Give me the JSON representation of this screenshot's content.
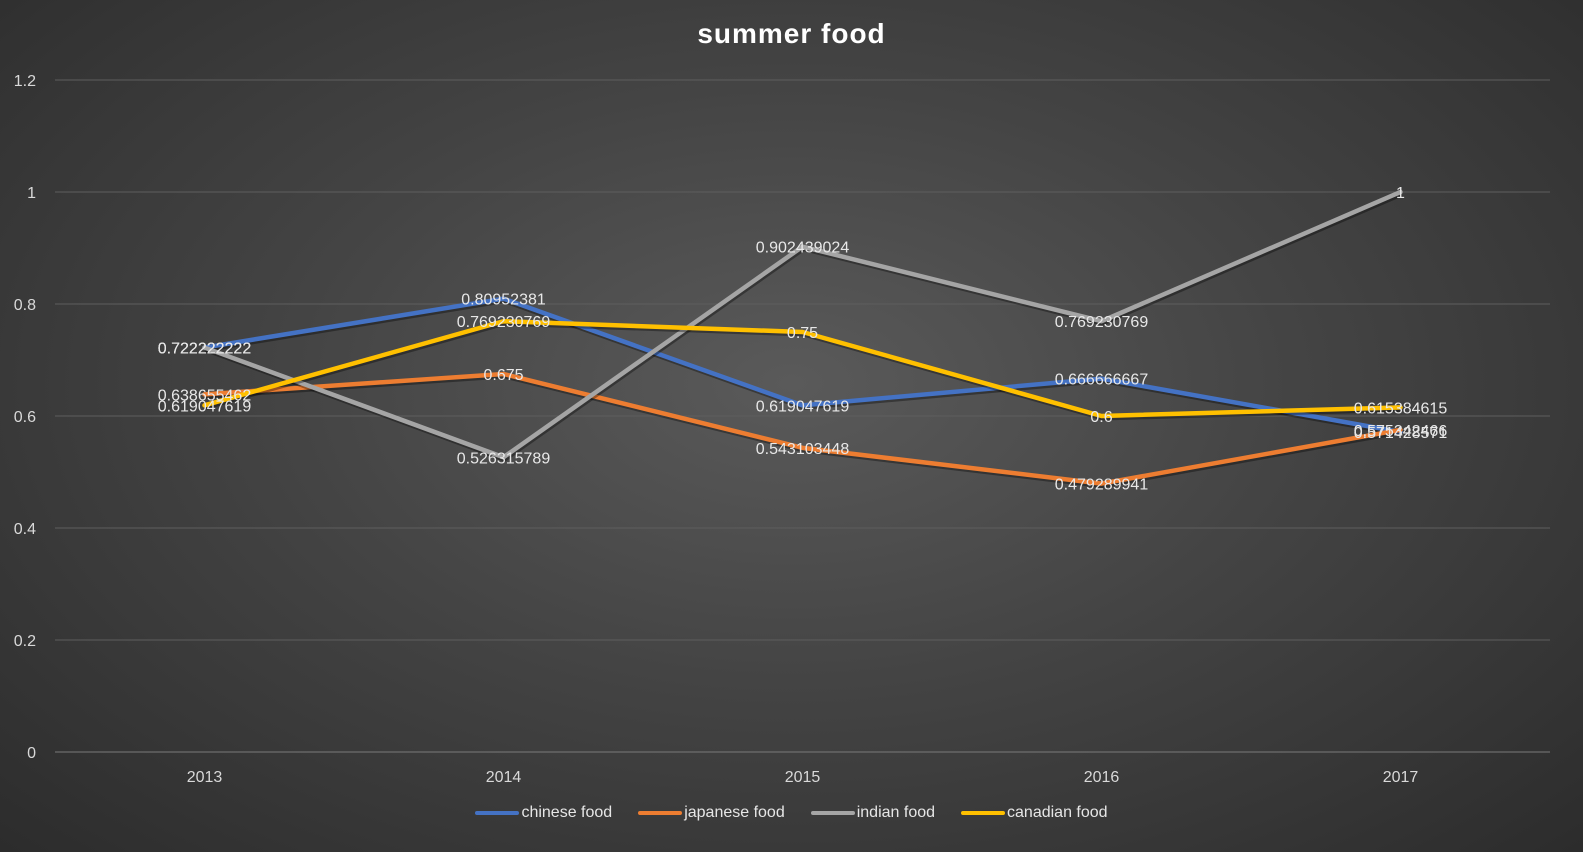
{
  "chart_data": {
    "type": "line",
    "title": "summer food",
    "xlabel": "",
    "ylabel": "",
    "categories": [
      "2013",
      "2014",
      "2015",
      "2016",
      "2017"
    ],
    "ylim": [
      0,
      1.2
    ],
    "yticks": [
      "0",
      "0.2",
      "0.4",
      "0.6",
      "0.8",
      "1",
      "1.2"
    ],
    "grid": true,
    "legend_position": "bottom",
    "series": [
      {
        "name": "chinese food",
        "color": "#4472C4",
        "values": [
          0.722222222,
          0.80952381,
          0.619047619,
          0.666666667,
          0.571428571
        ],
        "labels": [
          "0.722222222",
          "0.80952381",
          "0.619047619",
          "0.666666667",
          "0.571428571"
        ]
      },
      {
        "name": "japanese food",
        "color": "#ED7D31",
        "values": [
          0.638655462,
          0.675,
          0.543103448,
          0.479289941,
          0.575342466
        ],
        "labels": [
          "0.638655462",
          "0.675",
          "0.543103448",
          "0.479289941",
          "0.575342466"
        ]
      },
      {
        "name": "indian food",
        "color": "#A5A5A5",
        "values": [
          0.722222222,
          0.526315789,
          0.902439024,
          0.769230769,
          1
        ],
        "labels": [
          "0.722222222",
          "0.526315789",
          "0.902439024",
          "0.769230769",
          "1"
        ]
      },
      {
        "name": "canadian food",
        "color": "#FFC000",
        "values": [
          0.619047619,
          0.769230769,
          0.75,
          0.6,
          0.615384615
        ],
        "labels": [
          "0.619047619",
          "0.769230769",
          "0.75",
          "0.6",
          "0.615384615"
        ]
      }
    ]
  }
}
